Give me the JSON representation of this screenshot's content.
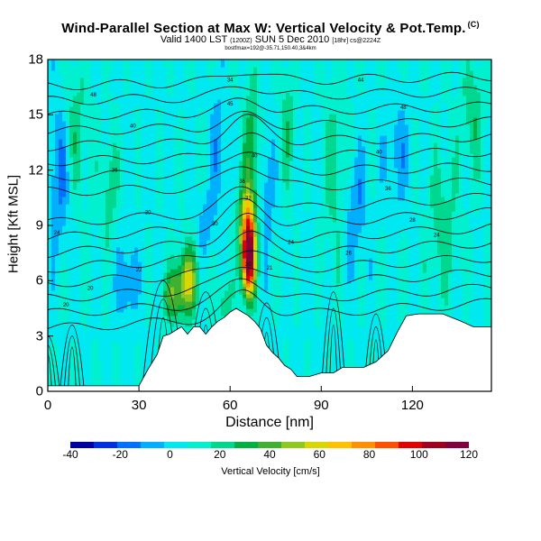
{
  "title": {
    "main": "Wind-Parallel Section at Max W: Vertical Velocity & Pot.Temp.",
    "copyright": "(C)",
    "valid_line": "Valid 1400 LST",
    "valid_utc": "(1200Z)",
    "valid_date": "SUN 5 Dec 2010",
    "valid_extra": "[18hr] cs@2224Z",
    "sub_line": "bostfmax=192@-35.71,150.40,3&4km"
  },
  "chart_data": {
    "type": "heatmap",
    "xlabel": "Distance [nm]",
    "ylabel": "Height [Kft MSL]",
    "xlim": [
      0,
      146
    ],
    "ylim": [
      0,
      18
    ],
    "x_ticks": [
      "0",
      "30",
      "60",
      "90",
      "120"
    ],
    "x_tick_values": [
      0,
      30,
      60,
      90,
      120
    ],
    "y_ticks": [
      "0",
      "3",
      "6",
      "9",
      "12",
      "15",
      "18"
    ],
    "y_tick_values": [
      0,
      3,
      6,
      9,
      12,
      15,
      18
    ],
    "colorbar": {
      "label": "Vertical Velocity [cm/s]",
      "min": -40,
      "max": 120,
      "tick_labels": [
        "-40",
        "-20",
        "0",
        "20",
        "40",
        "60",
        "80",
        "100",
        "120"
      ],
      "tick_values": [
        -40,
        -20,
        0,
        20,
        40,
        60,
        80,
        100,
        120
      ],
      "colors": [
        "#0000a0",
        "#0030e0",
        "#0070ff",
        "#00b0ff",
        "#00e8f0",
        "#00f0d0",
        "#00d890",
        "#00b040",
        "#40b030",
        "#90c820",
        "#d8d800",
        "#ffc000",
        "#ff9000",
        "#ff5000",
        "#e00000",
        "#a00020",
        "#800040"
      ]
    },
    "terrain": [
      [
        0,
        0.3
      ],
      [
        10,
        0.3
      ],
      [
        30,
        0.3
      ],
      [
        33,
        1.2
      ],
      [
        36,
        2
      ],
      [
        38,
        3
      ],
      [
        40,
        3.1
      ],
      [
        44,
        3.5
      ],
      [
        46,
        3.1
      ],
      [
        48,
        3.5
      ],
      [
        50,
        3.5
      ],
      [
        52,
        3.1
      ],
      [
        54,
        3.5
      ],
      [
        56,
        3.8
      ],
      [
        58,
        4
      ],
      [
        60,
        4.3
      ],
      [
        62,
        4.5
      ],
      [
        64,
        4.3
      ],
      [
        66,
        4.1
      ],
      [
        68,
        3.8
      ],
      [
        70,
        3.4
      ],
      [
        72,
        2.5
      ],
      [
        74,
        2.1
      ],
      [
        76,
        1.8
      ],
      [
        78,
        1.4
      ],
      [
        80,
        1.2
      ],
      [
        82,
        0.8
      ],
      [
        86,
        0.8
      ],
      [
        90,
        1
      ],
      [
        94,
        1
      ],
      [
        97,
        1.3
      ],
      [
        100,
        1.3
      ],
      [
        104,
        1.3
      ],
      [
        108,
        1.6
      ],
      [
        112,
        2.2
      ],
      [
        115,
        3.2
      ],
      [
        118,
        4.1
      ],
      [
        122,
        4.2
      ],
      [
        130,
        4.2
      ],
      [
        136,
        3.8
      ],
      [
        140,
        3.5
      ],
      [
        146,
        3.5
      ]
    ],
    "theta_labels": [
      {
        "text": "34",
        "x": 60,
        "y": 16.8
      },
      {
        "text": "44",
        "x": 103,
        "y": 16.8
      },
      {
        "text": "48",
        "x": 15,
        "y": 16
      },
      {
        "text": "48",
        "x": 117,
        "y": 15.3
      },
      {
        "text": "45",
        "x": 60,
        "y": 15.5
      },
      {
        "text": "40",
        "x": 28,
        "y": 14.3
      },
      {
        "text": "40",
        "x": 68,
        "y": 12.7
      },
      {
        "text": "40",
        "x": 109,
        "y": 12.9
      },
      {
        "text": "36",
        "x": 22,
        "y": 11.9
      },
      {
        "text": "36",
        "x": 64,
        "y": 11.3
      },
      {
        "text": "36",
        "x": 112,
        "y": 10.9
      },
      {
        "text": "32",
        "x": 66,
        "y": 10.4
      },
      {
        "text": "30",
        "x": 33,
        "y": 9.6
      },
      {
        "text": "30",
        "x": 55,
        "y": 9.0
      },
      {
        "text": "28",
        "x": 120,
        "y": 9.2
      },
      {
        "text": "24",
        "x": 3,
        "y": 8.5
      },
      {
        "text": "24",
        "x": 80,
        "y": 8.0
      },
      {
        "text": "24",
        "x": 128,
        "y": 8.4
      },
      {
        "text": "26",
        "x": 99,
        "y": 7.4
      },
      {
        "text": "22",
        "x": 30,
        "y": 6.5
      },
      {
        "text": "21",
        "x": 73,
        "y": 6.6
      },
      {
        "text": "20",
        "x": 66,
        "y": 6.8
      },
      {
        "text": "20",
        "x": 14,
        "y": 5.5
      },
      {
        "text": "20",
        "x": 6,
        "y": 4.6
      }
    ]
  }
}
